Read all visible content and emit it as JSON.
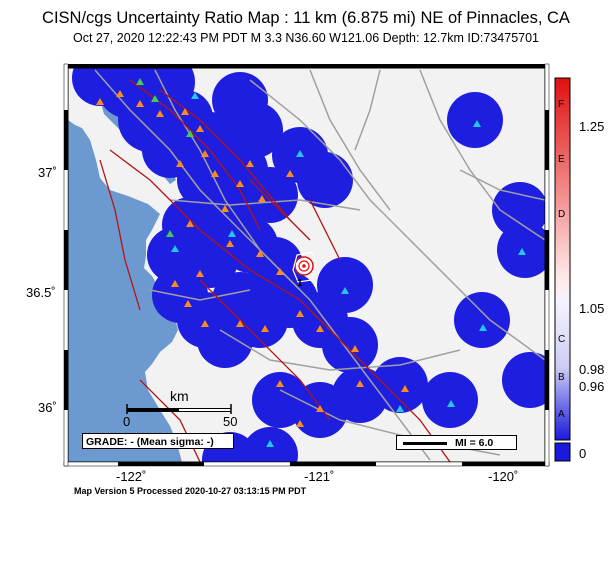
{
  "header": {
    "title": "CISN/cgs Uncertainty Ratio Map : 11 km (6.875 mi) NE of Pinnacles, CA",
    "subtitle": "Oct 27, 2020 12:22:43 PM PDT   M 3.3   N36.60 W121.06   Depth: 12.7km   ID:73475701"
  },
  "axes": {
    "lat_labels": [
      "37˚",
      "36.5˚",
      "36˚"
    ],
    "lon_labels": [
      "-122˚",
      "-121˚",
      "-120˚"
    ]
  },
  "scale_bar": {
    "unit": "km",
    "min_label": "0",
    "max_label": "50"
  },
  "grade": {
    "text": "GRADE: - (Mean sigma: -)"
  },
  "mi_legend": {
    "text": "MI = 6.0"
  },
  "colorbar": {
    "letters": [
      "F",
      "E",
      "D",
      "C",
      "B",
      "A"
    ],
    "ticks": [
      "1.25",
      "1.05",
      "0.98",
      "0.96",
      "0"
    ],
    "colors": {
      "top": "#e01010",
      "mid": "#f2f2ff",
      "bottom": "#1a1adc"
    }
  },
  "epicenter": {
    "label": "1",
    "lat": 36.6,
    "lon": -121.06
  },
  "footer": {
    "text": "Map Version 5 Processed 2020-10-27 03:13:15 PM PDT"
  },
  "colors": {
    "ocean": "#6c9ad0",
    "land": "#f2f2f2",
    "station_disc": "#1e1ee0",
    "fault": "#b41414",
    "road": "#a0a0a0",
    "triangle_orange": "#ff8c1a",
    "triangle_cyan": "#22c8e6",
    "triangle_green": "#44cc55"
  }
}
